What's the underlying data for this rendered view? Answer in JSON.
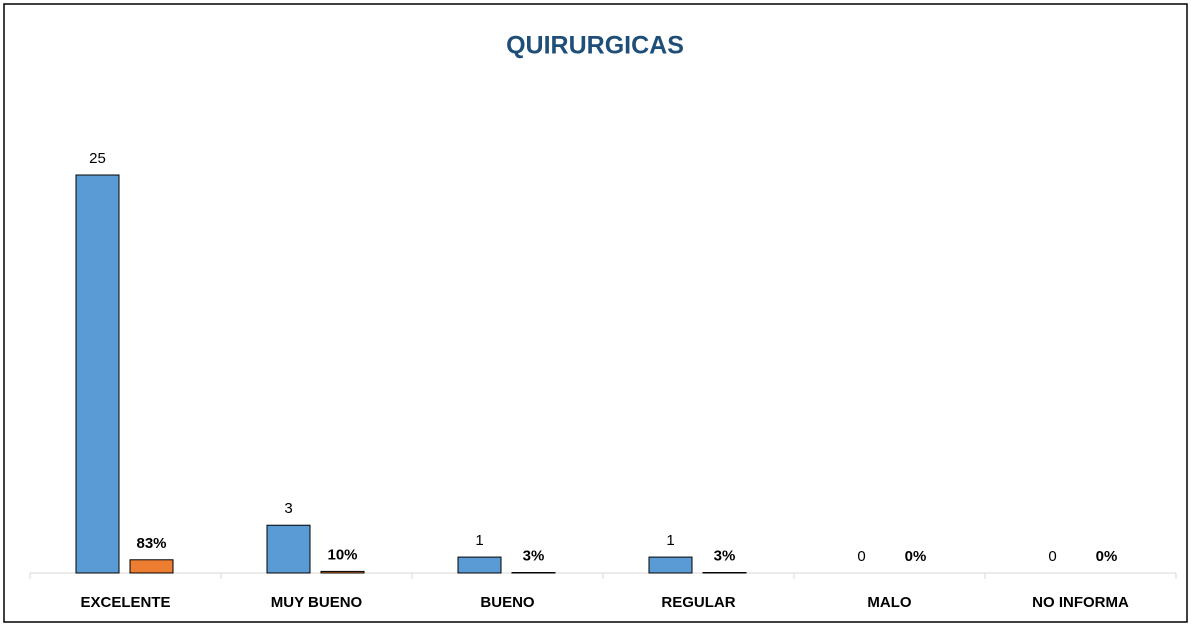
{
  "chart_data": {
    "type": "bar",
    "title": "QUIRURGICAS",
    "categories": [
      "EXCELENTE",
      "MUY BUENO",
      "BUENO",
      "REGULAR",
      "MALO",
      "NO INFORMA"
    ],
    "series": [
      {
        "color": "#5b9bd5",
        "values": [
          25,
          3,
          1,
          1,
          0,
          0
        ]
      },
      {
        "color": "#ed7d31",
        "values": [
          0.83,
          0.1,
          0.03,
          0.03,
          0,
          0
        ],
        "value_labels": [
          "83%",
          "10%",
          "3%",
          "3%",
          "0%",
          "0%"
        ]
      }
    ],
    "ylim": [
      0,
      25
    ]
  }
}
